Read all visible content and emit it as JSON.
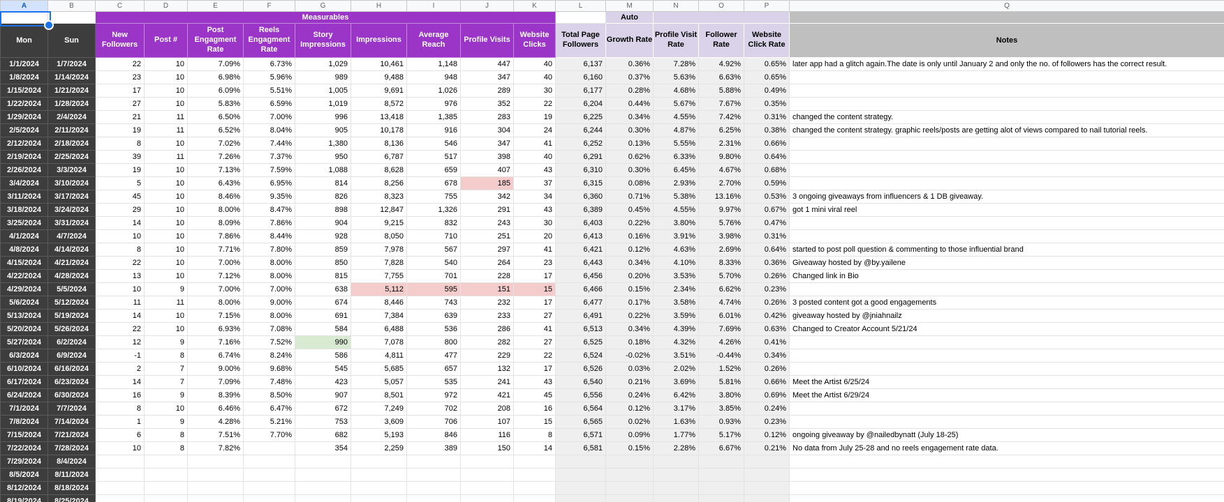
{
  "sheet": {
    "column_letters": [
      "A",
      "B",
      "C",
      "D",
      "E",
      "F",
      "G",
      "H",
      "I",
      "J",
      "K",
      "L",
      "M",
      "N",
      "O",
      "P",
      "Q"
    ],
    "selected_column": "A",
    "band_row": {
      "measurables": "Measurables",
      "auto": "Auto"
    },
    "header_row": {
      "mon": "Mon",
      "sun": "Sun",
      "measurables": [
        "New Followers",
        "Post #",
        "Post Engagment Rate",
        "Reels Engagment Rate",
        "Story Impressions",
        "Impressions",
        "Average Reach",
        "Profile Visits",
        "Website Clicks"
      ],
      "auto": [
        "Total Page Followers",
        "Growth Rate",
        "Profile Visit Rate",
        "Follower Rate",
        "Website Click Rate"
      ],
      "notes": "Notes"
    },
    "rows": [
      {
        "mon": "1/1/2024",
        "sun": "1/7/2024",
        "values": [
          "22",
          "10",
          "7.09%",
          "6.73%",
          "1,029",
          "10,461",
          "1,148",
          "447",
          "40",
          "6,137",
          "0.36%",
          "7.28%",
          "4.92%",
          "0.65%"
        ],
        "notes": "later app had a glitch again.The date is only until January 2 and only the no. of followers has the correct result."
      },
      {
        "mon": "1/8/2024",
        "sun": "1/14/2024",
        "values": [
          "23",
          "10",
          "6.98%",
          "5.96%",
          "989",
          "9,488",
          "948",
          "347",
          "40",
          "6,160",
          "0.37%",
          "5.63%",
          "6.63%",
          "0.65%"
        ],
        "notes": ""
      },
      {
        "mon": "1/15/2024",
        "sun": "1/21/2024",
        "values": [
          "17",
          "10",
          "6.09%",
          "5.51%",
          "1,005",
          "9,691",
          "1,026",
          "289",
          "30",
          "6,177",
          "0.28%",
          "4.68%",
          "5.88%",
          "0.49%"
        ],
        "notes": ""
      },
      {
        "mon": "1/22/2024",
        "sun": "1/28/2024",
        "values": [
          "27",
          "10",
          "5.83%",
          "6.59%",
          "1,019",
          "8,572",
          "976",
          "352",
          "22",
          "6,204",
          "0.44%",
          "5.67%",
          "7.67%",
          "0.35%"
        ],
        "notes": ""
      },
      {
        "mon": "1/29/2024",
        "sun": "2/4/2024",
        "values": [
          "21",
          "11",
          "6.50%",
          "7.00%",
          "996",
          "13,418",
          "1,385",
          "283",
          "19",
          "6,225",
          "0.34%",
          "4.55%",
          "7.42%",
          "0.31%"
        ],
        "notes": "changed the content strategy."
      },
      {
        "mon": "2/5/2024",
        "sun": "2/11/2024",
        "values": [
          "19",
          "11",
          "6.52%",
          "8.04%",
          "905",
          "10,178",
          "916",
          "304",
          "24",
          "6,244",
          "0.30%",
          "4.87%",
          "6.25%",
          "0.38%"
        ],
        "notes": "changed the content strategy. graphic reels/posts are getting alot of views compared to nail tutorial reels."
      },
      {
        "mon": "2/12/2024",
        "sun": "2/18/2024",
        "values": [
          "8",
          "10",
          "7.02%",
          "7.44%",
          "1,380",
          "8,136",
          "546",
          "347",
          "41",
          "6,252",
          "0.13%",
          "5.55%",
          "2.31%",
          "0.66%"
        ],
        "notes": ""
      },
      {
        "mon": "2/19/2024",
        "sun": "2/25/2024",
        "values": [
          "39",
          "11",
          "7.26%",
          "7.37%",
          "950",
          "6,787",
          "517",
          "398",
          "40",
          "6,291",
          "0.62%",
          "6.33%",
          "9.80%",
          "0.64%"
        ],
        "notes": ""
      },
      {
        "mon": "2/26/2024",
        "sun": "3/3/2024",
        "values": [
          "19",
          "10",
          "7.13%",
          "7.59%",
          "1,088",
          "8,628",
          "659",
          "407",
          "43",
          "6,310",
          "0.30%",
          "6.45%",
          "4.67%",
          "0.68%"
        ],
        "notes": ""
      },
      {
        "mon": "3/4/2024",
        "sun": "3/10/2024",
        "values": [
          "5",
          "10",
          "6.43%",
          "6.95%",
          "814",
          "8,256",
          "678",
          "185",
          "37",
          "6,315",
          "0.08%",
          "2.93%",
          "2.70%",
          "0.59%"
        ],
        "hl": {
          "7": "pink"
        },
        "notes": ""
      },
      {
        "mon": "3/11/2024",
        "sun": "3/17/2024",
        "values": [
          "45",
          "10",
          "8.46%",
          "9.35%",
          "826",
          "8,323",
          "755",
          "342",
          "34",
          "6,360",
          "0.71%",
          "5.38%",
          "13.16%",
          "0.53%"
        ],
        "notes": "3 ongoing giveaways from influencers & 1 DB giveaway."
      },
      {
        "mon": "3/18/2024",
        "sun": "3/24/2024",
        "values": [
          "29",
          "10",
          "8.00%",
          "8.47%",
          "898",
          "12,847",
          "1,326",
          "291",
          "43",
          "6,389",
          "0.45%",
          "4.55%",
          "9.97%",
          "0.67%"
        ],
        "notes": "got 1 mini viral reel"
      },
      {
        "mon": "3/25/2024",
        "sun": "3/31/2024",
        "values": [
          "14",
          "10",
          "8.09%",
          "7.86%",
          "904",
          "9,215",
          "832",
          "243",
          "30",
          "6,403",
          "0.22%",
          "3.80%",
          "5.76%",
          "0.47%"
        ],
        "notes": ""
      },
      {
        "mon": "4/1/2024",
        "sun": "4/7/2024",
        "values": [
          "10",
          "10",
          "7.86%",
          "8.44%",
          "928",
          "8,050",
          "710",
          "251",
          "20",
          "6,413",
          "0.16%",
          "3.91%",
          "3.98%",
          "0.31%"
        ],
        "notes": ""
      },
      {
        "mon": "4/8/2024",
        "sun": "4/14/2024",
        "values": [
          "8",
          "10",
          "7.71%",
          "7.80%",
          "859",
          "7,978",
          "567",
          "297",
          "41",
          "6,421",
          "0.12%",
          "4.63%",
          "2.69%",
          "0.64%"
        ],
        "notes": "started to post poll question & commenting to those influential brand"
      },
      {
        "mon": "4/15/2024",
        "sun": "4/21/2024",
        "values": [
          "22",
          "10",
          "7.00%",
          "8.00%",
          "850",
          "7,828",
          "540",
          "264",
          "23",
          "6,443",
          "0.34%",
          "4.10%",
          "8.33%",
          "0.36%"
        ],
        "notes": "Giveaway hosted by @by.yailene"
      },
      {
        "mon": "4/22/2024",
        "sun": "4/28/2024",
        "values": [
          "13",
          "10",
          "7.12%",
          "8.00%",
          "815",
          "7,755",
          "701",
          "228",
          "17",
          "6,456",
          "0.20%",
          "3.53%",
          "5.70%",
          "0.26%"
        ],
        "notes": "Changed link in Bio"
      },
      {
        "mon": "4/29/2024",
        "sun": "5/5/2024",
        "values": [
          "10",
          "9",
          "7.00%",
          "7.00%",
          "638",
          "5,112",
          "595",
          "151",
          "15",
          "6,466",
          "0.15%",
          "2.34%",
          "6.62%",
          "0.23%"
        ],
        "hl": {
          "5": "pink",
          "6": "pink",
          "7": "pink",
          "8": "pink"
        },
        "notes": ""
      },
      {
        "mon": "5/6/2024",
        "sun": "5/12/2024",
        "values": [
          "11",
          "11",
          "8.00%",
          "9.00%",
          "674",
          "8,446",
          "743",
          "232",
          "17",
          "6,477",
          "0.17%",
          "3.58%",
          "4.74%",
          "0.26%"
        ],
        "notes": "3 posted content got a good engagements"
      },
      {
        "mon": "5/13/2024",
        "sun": "5/19/2024",
        "values": [
          "14",
          "10",
          "7.15%",
          "8.00%",
          "691",
          "7,384",
          "639",
          "233",
          "27",
          "6,491",
          "0.22%",
          "3.59%",
          "6.01%",
          "0.42%"
        ],
        "notes": "giveaway hosted by @jniahnailz"
      },
      {
        "mon": "5/20/2024",
        "sun": "5/26/2024",
        "values": [
          "22",
          "10",
          "6.93%",
          "7.08%",
          "584",
          "6,488",
          "536",
          "286",
          "41",
          "6,513",
          "0.34%",
          "4.39%",
          "7.69%",
          "0.63%"
        ],
        "notes": "Changed to Creator Account 5/21/24"
      },
      {
        "mon": "5/27/2024",
        "sun": "6/2/2024",
        "values": [
          "12",
          "9",
          "7.16%",
          "7.52%",
          "990",
          "7,078",
          "800",
          "282",
          "27",
          "6,525",
          "0.18%",
          "4.32%",
          "4.26%",
          "0.41%"
        ],
        "hl": {
          "4": "green"
        },
        "notes": ""
      },
      {
        "mon": "6/3/2024",
        "sun": "6/9/2024",
        "values": [
          "-1",
          "8",
          "6.74%",
          "8.24%",
          "586",
          "4,811",
          "477",
          "229",
          "22",
          "6,524",
          "-0.02%",
          "3.51%",
          "-0.44%",
          "0.34%"
        ],
        "notes": ""
      },
      {
        "mon": "6/10/2024",
        "sun": "6/16/2024",
        "values": [
          "2",
          "7",
          "9.00%",
          "9.68%",
          "545",
          "5,685",
          "657",
          "132",
          "17",
          "6,526",
          "0.03%",
          "2.02%",
          "1.52%",
          "0.26%"
        ],
        "notes": ""
      },
      {
        "mon": "6/17/2024",
        "sun": "6/23/2024",
        "values": [
          "14",
          "7",
          "7.09%",
          "7.48%",
          "423",
          "5,057",
          "535",
          "241",
          "43",
          "6,540",
          "0.21%",
          "3.69%",
          "5.81%",
          "0.66%"
        ],
        "notes": "Meet the Artist 6/25/24"
      },
      {
        "mon": "6/24/2024",
        "sun": "6/30/2024",
        "values": [
          "16",
          "9",
          "8.39%",
          "8.50%",
          "907",
          "8,501",
          "972",
          "421",
          "45",
          "6,556",
          "0.24%",
          "6.42%",
          "3.80%",
          "0.69%"
        ],
        "notes": "Meet the Artist 6/29/24"
      },
      {
        "mon": "7/1/2024",
        "sun": "7/7/2024",
        "values": [
          "8",
          "10",
          "6.46%",
          "6.47%",
          "672",
          "7,249",
          "702",
          "208",
          "16",
          "6,564",
          "0.12%",
          "3.17%",
          "3.85%",
          "0.24%"
        ],
        "notes": ""
      },
      {
        "mon": "7/8/2024",
        "sun": "7/14/2024",
        "values": [
          "1",
          "9",
          "4.28%",
          "5.21%",
          "753",
          "3,609",
          "706",
          "107",
          "15",
          "6,565",
          "0.02%",
          "1.63%",
          "0.93%",
          "0.23%"
        ],
        "notes": ""
      },
      {
        "mon": "7/15/2024",
        "sun": "7/21/2024",
        "values": [
          "6",
          "8",
          "7.51%",
          "7.70%",
          "682",
          "5,193",
          "846",
          "116",
          "8",
          "6,571",
          "0.09%",
          "1.77%",
          "5.17%",
          "0.12%"
        ],
        "notes": "ongoing giveaway by @nailedbynatt (July 18-25)"
      },
      {
        "mon": "7/22/2024",
        "sun": "7/28/2024",
        "values": [
          "10",
          "8",
          "7.82%",
          "",
          "354",
          "2,259",
          "389",
          "150",
          "14",
          "6,581",
          "0.15%",
          "2.28%",
          "6.67%",
          "0.21%"
        ],
        "notes": "No data from July 25-28 and  no reels engagement rate data."
      },
      {
        "mon": "7/29/2024",
        "sun": "8/4/2024",
        "values": [
          "",
          "",
          "",
          "",
          "",
          "",
          "",
          "",
          "",
          "",
          "",
          "",
          "",
          ""
        ],
        "notes": ""
      },
      {
        "mon": "8/5/2024",
        "sun": "8/11/2024",
        "values": [
          "",
          "",
          "",
          "",
          "",
          "",
          "",
          "",
          "",
          "",
          "",
          "",
          "",
          ""
        ],
        "notes": ""
      },
      {
        "mon": "8/12/2024",
        "sun": "8/18/2024",
        "values": [
          "",
          "",
          "",
          "",
          "",
          "",
          "",
          "",
          "",
          "",
          "",
          "",
          "",
          ""
        ],
        "notes": ""
      },
      {
        "mon": "8/19/2024",
        "sun": "8/25/2024",
        "values": [
          "",
          "",
          "",
          "",
          "",
          "",
          "",
          "",
          "",
          "",
          "",
          "",
          "",
          ""
        ],
        "notes": ""
      }
    ]
  },
  "colors": {
    "measurables_purple": "#9b35c7",
    "auto_lavender": "#d9d2e9",
    "date_dark": "#3d3d3d",
    "notes_gray": "#bfbfbf",
    "auto_column_fill": "#efefef",
    "highlight_pink": "#f4cccc",
    "highlight_green": "#d9ead3",
    "selection_blue": "#1a73e8",
    "selected_column_header": "#d3e3fd"
  }
}
